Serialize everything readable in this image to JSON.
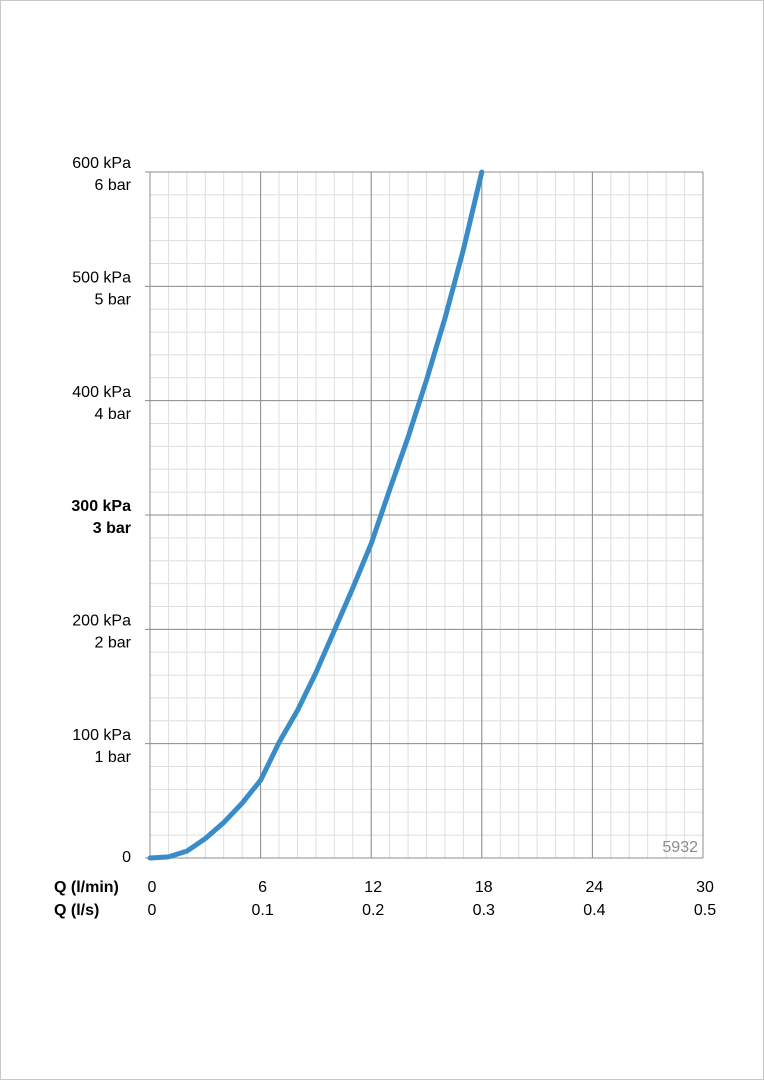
{
  "chart_data": {
    "type": "line",
    "x": [
      0,
      1,
      2,
      3,
      4,
      5,
      6,
      7,
      8,
      9,
      10,
      11,
      12,
      13,
      14,
      15,
      16,
      17,
      18
    ],
    "series": [
      {
        "color": "#3a8cc8",
        "values": [
          0,
          1,
          6,
          17,
          31,
          48,
          68,
          101,
          129,
          162,
          199,
          236,
          275,
          322,
          368,
          418,
          472,
          532,
          600
        ]
      }
    ],
    "xlim": [
      0,
      30
    ],
    "xticks": [
      0,
      6,
      12,
      18,
      24,
      30
    ],
    "xlabel": "Q (l/min)",
    "x2label": "Q (l/s)",
    "x2ticks": [
      0,
      0.1,
      0.2,
      0.3,
      0.4,
      0.5
    ],
    "ylim": [
      0,
      600
    ],
    "yticks": [
      0,
      {
        "value": 100,
        "label": "100 kPa"
      },
      {
        "value": 200,
        "label": "200 kPa"
      },
      {
        "value": 300,
        "label": "300 kPa"
      },
      {
        "value": 400,
        "label": "400 kPa"
      },
      {
        "value": 500,
        "label": "500 kPa"
      },
      {
        "value": 600,
        "label": "600 kPa"
      }
    ],
    "ytick_bar_labels": [
      null,
      "1 bar",
      "2 bar",
      "3 bar",
      "4 bar",
      "5 bar",
      "6 bar"
    ],
    "emphasized_ytick": 300,
    "grid": true,
    "minor_xstep": 1,
    "minor_ystep": 20,
    "annotation": "5932"
  }
}
